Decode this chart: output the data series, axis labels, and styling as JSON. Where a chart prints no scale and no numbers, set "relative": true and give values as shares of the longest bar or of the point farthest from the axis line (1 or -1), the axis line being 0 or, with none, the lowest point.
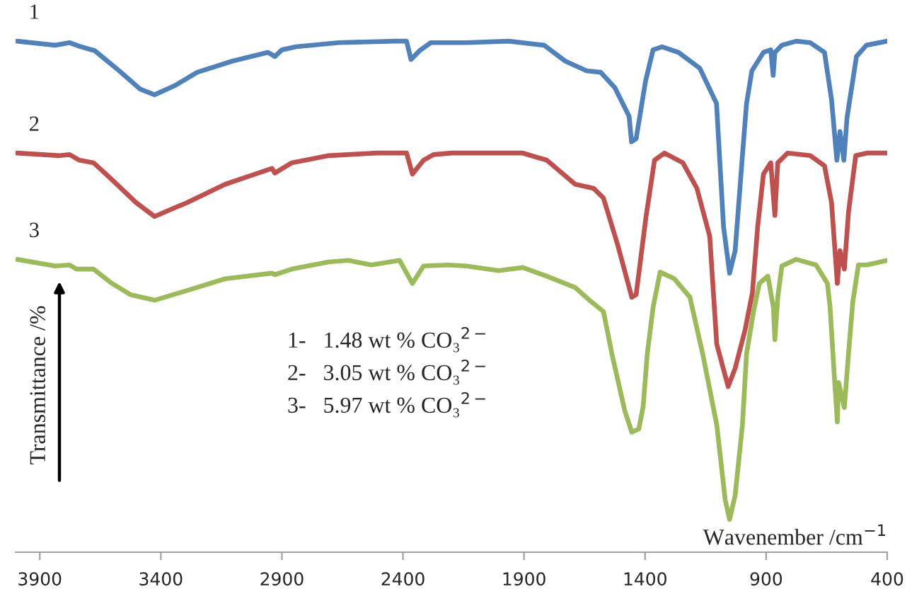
{
  "chart_data": {
    "type": "line",
    "relative": true,
    "xlabel": "Wavenember /cm$^{−1}$",
    "ylabel": "Transmittance /%",
    "xlim": [
      4000,
      400
    ],
    "xticks": [
      3900,
      3400,
      2900,
      2400,
      1900,
      1400,
      900,
      400
    ],
    "annotations": [
      "1-   1.48 wt % CO₃$^{2−}$",
      "2-   3.05 wt % CO₃$^{2−}$",
      "3-   5.97 wt % CO₃$^{2−}$"
    ],
    "series": [
      {
        "name": "1",
        "color": "#4f81bd",
        "x": [
          3994,
          3836,
          3777,
          3730,
          3672,
          3572,
          3485,
          3426,
          3338,
          3250,
          3104,
          2958,
          2929,
          2900,
          2841,
          2666,
          2432,
          2385,
          2367,
          2332,
          2285,
          2139,
          1963,
          1817,
          1730,
          1642,
          1583,
          1525,
          1466,
          1456,
          1437,
          1398,
          1367,
          1330,
          1262,
          1174,
          1105,
          1076,
          1051,
          1028,
          998,
          981,
          959,
          911,
          881,
          871,
          864,
          835,
          776,
          718,
          659,
          630,
          608,
          595,
          579,
          566,
          527,
          486,
          400
        ],
        "values": [
          1.0,
          0.992,
          0.997,
          0.989,
          0.981,
          0.942,
          0.906,
          0.895,
          0.914,
          0.939,
          0.961,
          0.978,
          0.97,
          0.983,
          0.989,
          0.997,
          1.0,
          1.0,
          0.964,
          0.981,
          0.997,
          0.997,
          1.0,
          0.992,
          0.961,
          0.942,
          0.939,
          0.909,
          0.853,
          0.803,
          0.809,
          0.922,
          0.983,
          0.989,
          0.978,
          0.947,
          0.878,
          0.637,
          0.546,
          0.59,
          0.776,
          0.878,
          0.942,
          0.978,
          0.983,
          0.933,
          0.978,
          0.992,
          1.0,
          0.997,
          0.978,
          0.886,
          0.767,
          0.823,
          0.767,
          0.85,
          0.97,
          0.992,
          1.0
        ]
      },
      {
        "name": "2",
        "color": "#c0504d",
        "x": [
          3994,
          3818,
          3777,
          3736,
          3678,
          3602,
          3502,
          3426,
          3292,
          3134,
          2941,
          2929,
          2859,
          2707,
          2508,
          2385,
          2361,
          2315,
          2274,
          2198,
          1905,
          1806,
          1689,
          1613,
          1572,
          1513,
          1455,
          1437,
          1396,
          1361,
          1320,
          1244,
          1186,
          1133,
          1104,
          1057,
          1028,
          987,
          957,
          935,
          911,
          881,
          864,
          852,
          811,
          718,
          659,
          630,
          606,
          595,
          577,
          560,
          530,
          484,
          400
        ],
        "values": [
          0.781,
          0.776,
          0.778,
          0.767,
          0.762,
          0.729,
          0.684,
          0.657,
          0.684,
          0.72,
          0.751,
          0.742,
          0.762,
          0.776,
          0.781,
          0.781,
          0.74,
          0.767,
          0.778,
          0.781,
          0.781,
          0.767,
          0.72,
          0.712,
          0.693,
          0.601,
          0.499,
          0.504,
          0.657,
          0.767,
          0.781,
          0.762,
          0.712,
          0.618,
          0.407,
          0.324,
          0.36,
          0.435,
          0.507,
          0.637,
          0.74,
          0.762,
          0.659,
          0.762,
          0.781,
          0.776,
          0.756,
          0.684,
          0.526,
          0.59,
          0.554,
          0.665,
          0.776,
          0.781,
          0.781
        ]
      },
      {
        "name": "3",
        "color": "#9bbb59",
        "x": [
          3994,
          3836,
          3777,
          3748,
          3678,
          3602,
          3526,
          3426,
          3292,
          3134,
          2941,
          2929,
          2859,
          2707,
          2625,
          2531,
          2414,
          2361,
          2315,
          2215,
          2139,
          2005,
          1905,
          1806,
          1689,
          1630,
          1572,
          1537,
          1484,
          1455,
          1426,
          1408,
          1391,
          1367,
          1338,
          1279,
          1215,
          1162,
          1104,
          1069,
          1051,
          1028,
          998,
          981,
          952,
          928,
          893,
          870,
          864,
          852,
          835,
          776,
          694,
          647,
          636,
          618,
          606,
          601,
          577,
          560,
          542,
          519,
          484,
          400
        ],
        "values": [
          0.573,
          0.56,
          0.562,
          0.554,
          0.554,
          0.526,
          0.504,
          0.493,
          0.512,
          0.535,
          0.546,
          0.543,
          0.554,
          0.568,
          0.571,
          0.562,
          0.571,
          0.526,
          0.56,
          0.562,
          0.56,
          0.551,
          0.557,
          0.54,
          0.518,
          0.493,
          0.471,
          0.388,
          0.277,
          0.235,
          0.241,
          0.285,
          0.388,
          0.479,
          0.548,
          0.535,
          0.499,
          0.388,
          0.249,
          0.102,
          0.064,
          0.111,
          0.249,
          0.388,
          0.471,
          0.526,
          0.54,
          0.479,
          0.416,
          0.499,
          0.56,
          0.573,
          0.562,
          0.526,
          0.479,
          0.341,
          0.255,
          0.332,
          0.283,
          0.388,
          0.49,
          0.562,
          0.562,
          0.571
        ]
      }
    ]
  }
}
